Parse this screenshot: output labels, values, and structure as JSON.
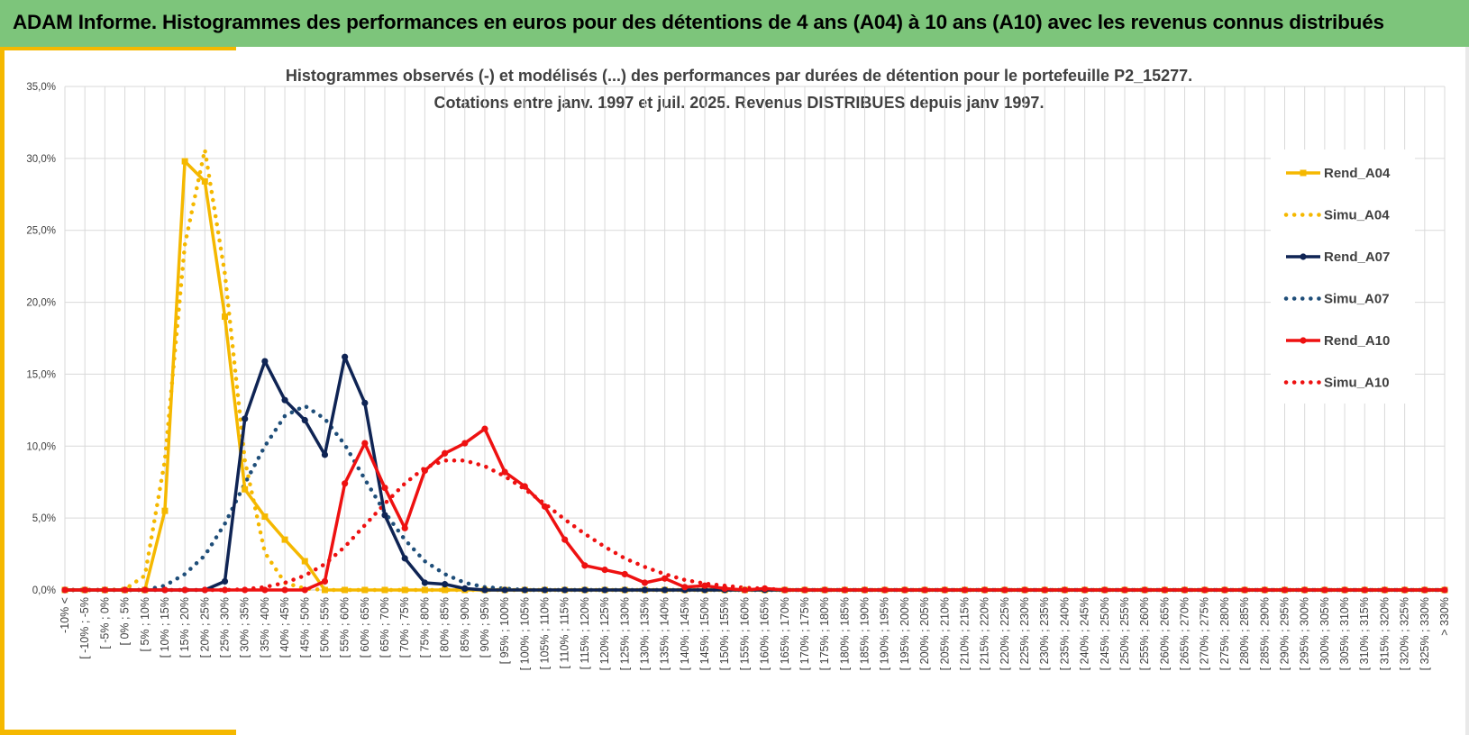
{
  "banner": {
    "title": "ADAM Informe. Histogrammes des performances en euros pour des détentions de 4 ans (A04) à 10 ans (A10) avec les revenus connus distribués"
  },
  "colors": {
    "banner": "#7dc57b",
    "accent": "#f5b800",
    "A04": "#f5b800",
    "A07": "#0f2454",
    "A07_simu": "#1f4e79",
    "A10": "#ee1111"
  },
  "chart_data": {
    "type": "line",
    "title_lines": [
      "Histogrammes observés (-) et modélisés (...) des performances par durées de détention pour le portefeuille P2_15277.",
      "Cotations entre janv. 1997 et juil. 2025. Revenus DISTRIBUES depuis janv 1997."
    ],
    "ylim": [
      0,
      35
    ],
    "y_ticks": [
      "0,0%",
      "5,0%",
      "10,0%",
      "15,0%",
      "20,0%",
      "25,0%",
      "30,0%",
      "35,0%"
    ],
    "grid": true,
    "legend_position": "right",
    "categories": [
      "-10% <",
      "[ -10% ; -5%",
      "[ -5% ; 0%",
      "[ 0% ; 5%",
      "[ 5% ; 10%",
      "[ 10% ; 15%",
      "[ 15% ; 20%",
      "[ 20% ; 25%",
      "[ 25% ; 30%",
      "[ 30% ; 35%",
      "[ 35% ; 40%",
      "[ 40% ; 45%",
      "[ 45% ; 50%",
      "[ 50% ; 55%",
      "[ 55% ; 60%",
      "[ 60% ; 65%",
      "[ 65% ; 70%",
      "[ 70% ; 75%",
      "[ 75% ; 80%",
      "[ 80% ; 85%",
      "[ 85% ; 90%",
      "[ 90% ; 95%",
      "[ 95% ; 100%",
      "[ 100% ; 105%",
      "[ 105% ; 110%",
      "[ 110% ; 115%",
      "[ 115% ; 120%",
      "[ 120% ; 125%",
      "[ 125% ; 130%",
      "[ 130% ; 135%",
      "[ 135% ; 140%",
      "[ 140% ; 145%",
      "[ 145% ; 150%",
      "[ 150% ; 155%",
      "[ 155% ; 160%",
      "[ 160% ; 165%",
      "[ 165% ; 170%",
      "[ 170% ; 175%",
      "[ 175% ; 180%",
      "[ 180% ; 185%",
      "[ 185% ; 190%",
      "[ 190% ; 195%",
      "[ 195% ; 200%",
      "[ 200% ; 205%",
      "[ 205% ; 210%",
      "[ 210% ; 215%",
      "[ 215% ; 220%",
      "[ 220% ; 225%",
      "[ 225% ; 230%",
      "[ 230% ; 235%",
      "[ 235% ; 240%",
      "[ 240% ; 245%",
      "[ 245% ; 250%",
      "[ 250% ; 255%",
      "[ 255% ; 260%",
      "[ 260% ; 265%",
      "[ 265% ; 270%",
      "[ 270% ; 275%",
      "[ 275% ; 280%",
      "[ 280% ; 285%",
      "[ 285% ; 290%",
      "[ 290% ; 295%",
      "[ 295% ; 300%",
      "[ 300% ; 305%",
      "[ 305% ; 310%",
      "[ 310% ; 315%",
      "[ 315% ; 320%",
      "[ 320% ; 325%",
      "[ 325% ; 330%",
      "> 330%"
    ],
    "series": [
      {
        "name": "Rend_A04",
        "style": "solid",
        "marker": "square",
        "color": "#f5b800",
        "values": [
          0,
          0,
          0,
          0,
          0,
          5.5,
          29.8,
          28.4,
          19.0,
          7.0,
          5.1,
          3.5,
          2.0,
          0,
          0,
          0,
          0,
          0,
          0,
          0,
          0,
          0,
          0,
          0,
          0,
          0,
          0,
          0,
          0,
          0,
          0,
          0,
          0,
          0,
          0,
          0,
          0,
          0,
          0,
          0,
          0,
          0,
          0,
          0,
          0,
          0,
          0,
          0,
          0,
          0,
          0,
          0,
          0,
          0,
          0,
          0,
          0,
          0,
          0,
          0,
          0,
          0,
          0,
          0,
          0,
          0,
          0,
          0,
          0,
          0
        ]
      },
      {
        "name": "Simu_A04",
        "style": "dotted",
        "color": "#f5b800",
        "values": [
          0,
          0,
          0,
          0.05,
          1.0,
          9.0,
          24.0,
          30.6,
          22.0,
          9.0,
          2.6,
          0.5,
          0.1,
          0,
          0,
          0,
          0,
          0,
          0,
          0,
          0,
          0,
          0,
          0,
          0,
          0,
          0,
          0,
          0,
          0,
          0,
          0,
          0,
          0,
          0,
          0,
          0,
          0,
          0,
          0,
          0,
          0,
          0,
          0,
          0,
          0,
          0,
          0,
          0,
          0,
          0,
          0,
          0,
          0,
          0,
          0,
          0,
          0,
          0,
          0,
          0,
          0,
          0,
          0,
          0,
          0,
          0,
          0,
          0,
          0
        ]
      },
      {
        "name": "Rend_A07",
        "style": "solid",
        "marker": "circle",
        "color": "#0f2454",
        "values": [
          0,
          0,
          0,
          0,
          0,
          0,
          0,
          0,
          0.6,
          11.9,
          15.9,
          13.2,
          11.8,
          9.4,
          16.2,
          13.0,
          5.2,
          2.2,
          0.5,
          0.4,
          0.1,
          0,
          0,
          0,
          0,
          0,
          0,
          0,
          0,
          0,
          0,
          0,
          0,
          0,
          0,
          0,
          0,
          0,
          0,
          0,
          0,
          0,
          0,
          0,
          0,
          0,
          0,
          0,
          0,
          0,
          0,
          0,
          0,
          0,
          0,
          0,
          0,
          0,
          0,
          0,
          0,
          0,
          0,
          0,
          0,
          0,
          0,
          0,
          0,
          0
        ]
      },
      {
        "name": "Simu_A07",
        "style": "dotted",
        "color": "#1f4e79",
        "values": [
          0,
          0,
          0,
          0,
          0,
          0.3,
          1.1,
          2.4,
          4.6,
          7.4,
          10.0,
          12.1,
          12.8,
          11.9,
          10.1,
          7.7,
          5.4,
          3.5,
          2.0,
          1.1,
          0.5,
          0.2,
          0.1,
          0,
          0,
          0,
          0,
          0,
          0,
          0,
          0,
          0,
          0,
          0,
          0,
          0,
          0,
          0,
          0,
          0,
          0,
          0,
          0,
          0,
          0,
          0,
          0,
          0,
          0,
          0,
          0,
          0,
          0,
          0,
          0,
          0,
          0,
          0,
          0,
          0,
          0,
          0,
          0,
          0,
          0,
          0,
          0,
          0,
          0,
          0
        ]
      },
      {
        "name": "Rend_A10",
        "style": "solid",
        "marker": "circle",
        "color": "#ee1111",
        "values": [
          0,
          0,
          0,
          0,
          0,
          0,
          0,
          0,
          0,
          0,
          0,
          0,
          0,
          0.6,
          7.4,
          10.2,
          7.1,
          4.3,
          8.3,
          9.5,
          10.2,
          11.2,
          8.2,
          7.2,
          5.8,
          3.5,
          1.7,
          1.4,
          1.1,
          0.5,
          0.8,
          0.2,
          0.3,
          0.1,
          0,
          0.1,
          0,
          0,
          0,
          0,
          0,
          0,
          0,
          0,
          0,
          0,
          0,
          0,
          0,
          0,
          0,
          0,
          0,
          0,
          0,
          0,
          0,
          0,
          0,
          0,
          0,
          0,
          0,
          0,
          0,
          0,
          0,
          0,
          0,
          0
        ]
      },
      {
        "name": "Simu_A10",
        "style": "dotted",
        "color": "#ee1111",
        "values": [
          0,
          0,
          0,
          0,
          0,
          0,
          0,
          0,
          0,
          0.05,
          0.2,
          0.5,
          1.0,
          1.8,
          3.0,
          4.5,
          6.0,
          7.4,
          8.5,
          9.0,
          9.0,
          8.6,
          7.9,
          7.0,
          6.0,
          4.9,
          3.9,
          3.0,
          2.2,
          1.6,
          1.1,
          0.7,
          0.45,
          0.3,
          0.15,
          0.1,
          0,
          0,
          0,
          0,
          0,
          0,
          0,
          0,
          0,
          0,
          0,
          0,
          0,
          0,
          0,
          0,
          0,
          0,
          0,
          0,
          0,
          0,
          0,
          0,
          0,
          0,
          0,
          0,
          0,
          0,
          0,
          0,
          0,
          0
        ]
      }
    ]
  }
}
